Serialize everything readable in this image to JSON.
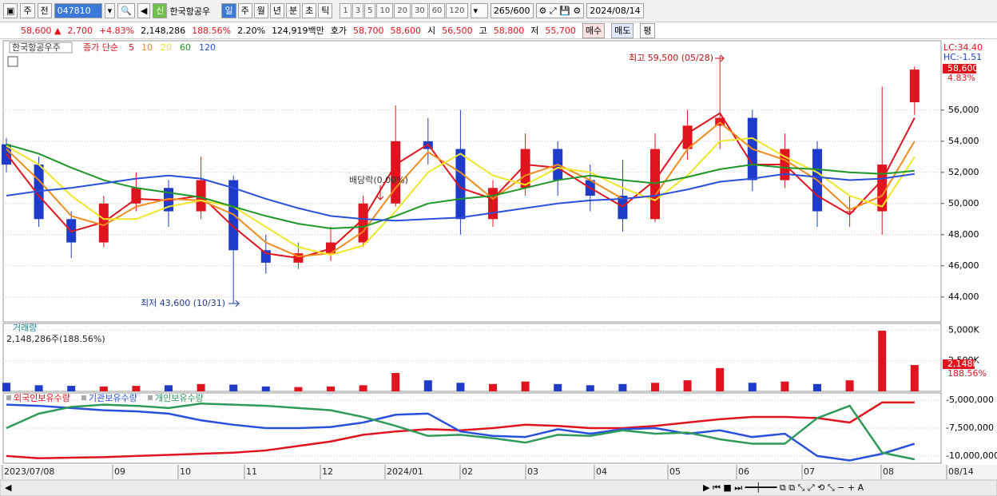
{
  "toolbar": {
    "market": "주",
    "prefix": "전",
    "code": "047810",
    "name": "한국항공우",
    "periods": [
      "일",
      "주",
      "월",
      "년",
      "분",
      "초",
      "틱"
    ],
    "intervals": [
      "1",
      "3",
      "5",
      "10",
      "20",
      "30",
      "60",
      "120"
    ],
    "count": "265/600",
    "date": "2024/08/14"
  },
  "quote": {
    "price": "58,600",
    "change": "2,700",
    "change_pct": "+4.83%",
    "volume": "2,148,286",
    "volume_ratio": "188.56%",
    "turnover": "2.20%",
    "amount": "124,919백만",
    "ask_label": "호가",
    "ask": "58,700",
    "bid": "58,600",
    "open_label": "시",
    "open": "56,500",
    "high_label": "고",
    "high": "58,800",
    "low_label": "저",
    "low": "55,700",
    "buy": "매수",
    "sell": "매도",
    "avg": "평"
  },
  "x_axis": [
    "2023/07/08",
    "09",
    "10",
    "11",
    "12",
    "2024/01",
    "02",
    "03",
    "04",
    "05",
    "06",
    "07",
    "08",
    "08/14"
  ],
  "chart_data": [
    {
      "type": "candlestick",
      "name": "한국항공우주",
      "ma_label": "종가 단순",
      "up_color": "#e0141e",
      "down_color": "#1e3cc8",
      "open": [
        53800,
        52500,
        49000,
        47500,
        50000,
        51000,
        49500,
        51500,
        47000,
        46200,
        46800,
        47500,
        50000,
        54000,
        53500,
        49000,
        51000,
        53500,
        51500,
        50500,
        49000,
        53500,
        55000,
        55500,
        51500,
        53500,
        49500,
        49500,
        56500
      ],
      "high": [
        54200,
        53000,
        49500,
        50500,
        52000,
        51500,
        53000,
        51800,
        48000,
        47500,
        48500,
        50500,
        56300,
        55500,
        56000,
        51500,
        54500,
        54000,
        52500,
        52800,
        54500,
        56000,
        59500,
        56000,
        54500,
        54000,
        50500,
        57500,
        58800
      ],
      "low": [
        52000,
        48500,
        46500,
        47200,
        49500,
        48500,
        49000,
        43600,
        45500,
        45800,
        46300,
        47200,
        49800,
        52500,
        48000,
        48500,
        50500,
        50500,
        49500,
        48200,
        48800,
        52800,
        53500,
        50800,
        51000,
        48500,
        48500,
        48000,
        55700
      ],
      "close": [
        52500,
        49000,
        47500,
        50000,
        51000,
        49500,
        51500,
        47000,
        46200,
        46800,
        47500,
        50000,
        54000,
        53500,
        49000,
        51000,
        53500,
        51500,
        50500,
        49000,
        53500,
        55000,
        55500,
        51500,
        53500,
        49500,
        49500,
        52500,
        58600
      ],
      "series": [
        {
          "name": "5",
          "color": "#e0141e",
          "values": [
            53200,
            50500,
            48200,
            48800,
            50300,
            50200,
            50500,
            48500,
            46800,
            46500,
            47100,
            49000,
            52500,
            53800,
            51000,
            50300,
            52500,
            52300,
            51000,
            49800,
            51500,
            54500,
            55800,
            52500,
            52500,
            50500,
            49300,
            51500,
            55500
          ]
        },
        {
          "name": "10",
          "color": "#f08c1e",
          "values": [
            53500,
            51500,
            49200,
            48600,
            49800,
            50300,
            50200,
            49300,
            47500,
            46600,
            46800,
            48200,
            51000,
            53300,
            52000,
            50300,
            51800,
            52500,
            51500,
            50300,
            50500,
            53500,
            55200,
            53500,
            52800,
            51500,
            49600,
            50500,
            54000
          ]
        },
        {
          "name": "20",
          "color": "#f0e628",
          "values": [
            53700,
            52500,
            50500,
            49000,
            49000,
            49800,
            50200,
            49800,
            48500,
            47200,
            46700,
            47300,
            49500,
            52000,
            53200,
            51800,
            51200,
            52300,
            52000,
            51000,
            50200,
            51800,
            54000,
            54200,
            53000,
            52000,
            50500,
            49800,
            53000
          ]
        },
        {
          "name": "60",
          "color": "#1e9628",
          "values": [
            53800,
            53200,
            52300,
            51500,
            51000,
            50700,
            50400,
            49800,
            49200,
            48700,
            48400,
            48500,
            49200,
            50000,
            50300,
            50500,
            51000,
            51500,
            51800,
            51500,
            51300,
            51700,
            52200,
            52500,
            52300,
            52200,
            52000,
            51900,
            52100
          ]
        },
        {
          "name": "120",
          "color": "#2850dc",
          "values": [
            50500,
            50800,
            51000,
            51300,
            51600,
            51800,
            51600,
            51000,
            50300,
            49700,
            49200,
            49000,
            48900,
            49000,
            49100,
            49400,
            49700,
            50000,
            50200,
            50300,
            50500,
            50900,
            51400,
            51600,
            51900,
            51700,
            51500,
            51600,
            51900
          ]
        }
      ],
      "ylim": [
        42400,
        60400
      ],
      "yticks": [
        {
          "value": 44000,
          "label": "44,000"
        },
        {
          "value": 46000,
          "label": "46,000"
        },
        {
          "value": 48000,
          "label": "48,000"
        },
        {
          "value": 50000,
          "label": "50,000"
        },
        {
          "value": 52000,
          "label": "52,000"
        },
        {
          "value": 54000,
          "label": "54,000"
        },
        {
          "value": 56000,
          "label": "56,000"
        }
      ],
      "high_label": "최고 59,500 (05/28)",
      "low_label": "최저 43,600 (10/31)",
      "ex_dividend": "배당락(0.00%)",
      "lc": "LC:34.40",
      "hc": "HC:-1.51",
      "last_price": "58,600",
      "last_change": "4.83%"
    },
    {
      "type": "bar",
      "title": "거래량",
      "subtitle": "2,148,286주(188.56%)",
      "values": [
        700,
        500,
        450,
        400,
        450,
        500,
        600,
        550,
        400,
        350,
        400,
        500,
        1500,
        900,
        700,
        600,
        800,
        600,
        500,
        600,
        700,
        900,
        1900,
        700,
        800,
        600,
        900,
        4950,
        2148
      ],
      "ylim": [
        0,
        5540
      ],
      "yticks": [
        {
          "value": 2500,
          "label": "2,500K"
        },
        {
          "value": 5000,
          "label": "5,000K"
        }
      ],
      "last_label": "2,148K",
      "last_ratio": "188.56%"
    },
    {
      "type": "line",
      "series": [
        {
          "name": "외국인보유수량",
          "color": "#e0141e",
          "values": [
            -10000000,
            -10200000,
            -10150000,
            -10100000,
            -10000000,
            -9900000,
            -9800000,
            -9700000,
            -9500000,
            -9100000,
            -8700000,
            -8100000,
            -7800000,
            -7600000,
            -7700000,
            -7500000,
            -7200000,
            -7300000,
            -7500000,
            -7500000,
            -7300000,
            -7000000,
            -6700000,
            -6500000,
            -6500000,
            -6600000,
            -7000000,
            -5200000,
            -5200000
          ]
        },
        {
          "name": "기관보유수량",
          "color": "#2850dc",
          "values": [
            -5400000,
            -5500000,
            -5700000,
            -5900000,
            -6000000,
            -6200000,
            -6800000,
            -7200000,
            -7500000,
            -7500000,
            -7400000,
            -7000000,
            -6300000,
            -6200000,
            -7800000,
            -8200000,
            -8300000,
            -7600000,
            -8000000,
            -7600000,
            -7500000,
            -8000000,
            -7700000,
            -8300000,
            -8000000,
            -10000000,
            -10400000,
            -9800000,
            -8900000
          ]
        },
        {
          "name": "개인보유수량",
          "color": "#2e9a5a",
          "values": [
            -7500000,
            -6200000,
            -5600000,
            -5400000,
            -5500000,
            -5700000,
            -5300000,
            -5400000,
            -5500000,
            -5700000,
            -5900000,
            -6500000,
            -7300000,
            -8200000,
            -8100000,
            -8400000,
            -8800000,
            -8100000,
            -8200000,
            -7700000,
            -8000000,
            -7900000,
            -8500000,
            -8900000,
            -8900000,
            -6600000,
            -5500000,
            -9700000,
            -10300000
          ]
        }
      ],
      "ylim": [
        -10650000,
        -4350000
      ],
      "yticks": [
        {
          "value": -10000000,
          "label": "-10,000,000"
        },
        {
          "value": -7500000,
          "label": "-7,500,000"
        },
        {
          "value": -5000000,
          "label": "-5,000,000"
        }
      ]
    }
  ]
}
